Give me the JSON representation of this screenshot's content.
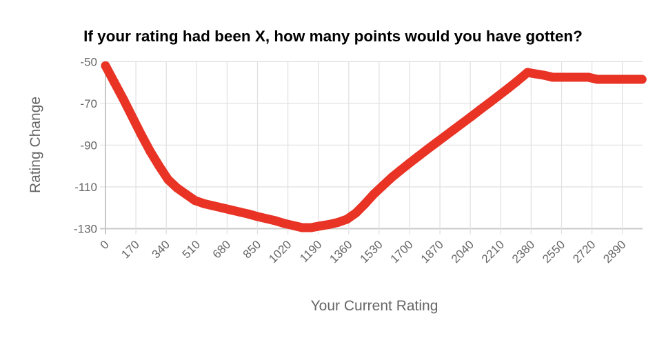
{
  "chart_data": {
    "type": "scatter",
    "title": "If your rating had been X, how many points would you have gotten?",
    "xlabel": "Your Current Rating",
    "ylabel": "Rating Change",
    "xlim": [
      0,
      3000
    ],
    "ylim": [
      -130,
      -50
    ],
    "x_ticks": [
      "0",
      "170",
      "340",
      "510",
      "680",
      "850",
      "1020",
      "1190",
      "1360",
      "1530",
      "1700",
      "1870",
      "2040",
      "2210",
      "2380",
      "2550",
      "2720",
      "2890"
    ],
    "y_ticks": [
      "-50",
      "-70",
      "-90",
      "-110",
      "-130"
    ],
    "grid": true,
    "legend": "none",
    "series_color": "#e83325",
    "points": [
      [
        0,
        -52
      ],
      [
        50,
        -60
      ],
      [
        100,
        -68
      ],
      [
        150,
        -76.5
      ],
      [
        200,
        -85
      ],
      [
        250,
        -93
      ],
      [
        300,
        -100
      ],
      [
        350,
        -106.5
      ],
      [
        400,
        -110.5
      ],
      [
        450,
        -113.5
      ],
      [
        500,
        -116.5
      ],
      [
        550,
        -118
      ],
      [
        600,
        -119
      ],
      [
        650,
        -120
      ],
      [
        700,
        -121
      ],
      [
        750,
        -122
      ],
      [
        800,
        -123
      ],
      [
        850,
        -124.2
      ],
      [
        900,
        -125.2
      ],
      [
        950,
        -126.2
      ],
      [
        1000,
        -127.5
      ],
      [
        1050,
        -128.5
      ],
      [
        1100,
        -129.5
      ],
      [
        1150,
        -129.5
      ],
      [
        1200,
        -128.7
      ],
      [
        1250,
        -128
      ],
      [
        1300,
        -127
      ],
      [
        1350,
        -125.5
      ],
      [
        1400,
        -122.5
      ],
      [
        1450,
        -118.2
      ],
      [
        1500,
        -113.5
      ],
      [
        1550,
        -109.5
      ],
      [
        1600,
        -105.5
      ],
      [
        1650,
        -102
      ],
      [
        1700,
        -98.6
      ],
      [
        1750,
        -95.3
      ],
      [
        1800,
        -92
      ],
      [
        1850,
        -88.8
      ],
      [
        1900,
        -85.6
      ],
      [
        1950,
        -82.4
      ],
      [
        2000,
        -79.2
      ],
      [
        2050,
        -76
      ],
      [
        2100,
        -72.7
      ],
      [
        2150,
        -69.5
      ],
      [
        2200,
        -66.2
      ],
      [
        2250,
        -62.9
      ],
      [
        2300,
        -59.5
      ],
      [
        2360,
        -55.2
      ],
      [
        2400,
        -55.8
      ],
      [
        2450,
        -56.5
      ],
      [
        2500,
        -57.5
      ],
      [
        2550,
        -57.5
      ],
      [
        2600,
        -57.5
      ],
      [
        2650,
        -57.5
      ],
      [
        2700,
        -57.5
      ],
      [
        2750,
        -58.5
      ],
      [
        2800,
        -58.5
      ],
      [
        2850,
        -58.5
      ],
      [
        2900,
        -58.5
      ],
      [
        2950,
        -58.5
      ],
      [
        3000,
        -58.5
      ]
    ]
  }
}
